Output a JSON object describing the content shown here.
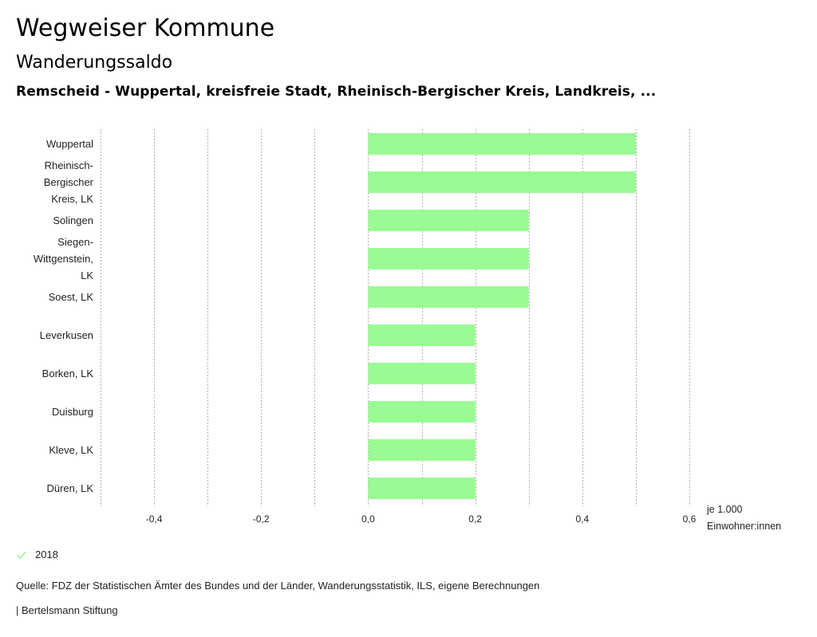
{
  "header": {
    "title": "Wegweiser Kommune",
    "subtitle": "Wanderungssaldo",
    "region": "Remscheid - Wuppertal, kreisfreie Stadt, Rheinisch-Bergischer Kreis, Landkreis, ..."
  },
  "colors": {
    "bar": "#9afa94",
    "grid": "#b0b0b0",
    "legend_check": "#9afa94"
  },
  "chart_data": {
    "type": "bar",
    "orientation": "horizontal",
    "title": "Wanderungssaldo",
    "categories": [
      [
        "Wuppertal"
      ],
      [
        "Rheinisch-",
        "Bergischer",
        "Kreis, LK"
      ],
      [
        "Solingen"
      ],
      [
        "Siegen-",
        "Wittgenstein,",
        "LK"
      ],
      [
        "Soest, LK"
      ],
      [
        "Leverkusen"
      ],
      [
        "Borken, LK"
      ],
      [
        "Duisburg"
      ],
      [
        "Kleve, LK"
      ],
      [
        "Düren, LK"
      ]
    ],
    "series": [
      {
        "name": "2018",
        "values": [
          0.5,
          0.5,
          0.3,
          0.3,
          0.3,
          0.2,
          0.2,
          0.2,
          0.2,
          0.2
        ]
      }
    ],
    "xlim": [
      -0.5,
      0.6
    ],
    "x_ticks": [
      -0.4,
      -0.2,
      0.0,
      0.2,
      0.4,
      0.6
    ],
    "x_tick_labels": [
      "-0,4",
      "-0,2",
      "0,0",
      "0,2",
      "0,4",
      "0,6"
    ],
    "gridlines": [
      -0.5,
      -0.4,
      -0.3,
      -0.2,
      -0.1,
      0.0,
      0.1,
      0.2,
      0.3,
      0.4,
      0.5,
      0.6
    ],
    "grid": true,
    "xlabel": [
      "je 1.000",
      "Einwohner:innen"
    ],
    "ylabel": "",
    "legend_position": "bottom-left"
  },
  "legend": {
    "items": [
      {
        "label": "2018",
        "icon": "check-icon"
      }
    ]
  },
  "footer": {
    "source": "Quelle: FDZ der Statistischen Ämter des Bundes und der Länder, Wanderungsstatistik, ILS, eigene Berechnungen",
    "credit": "| Bertelsmann Stiftung"
  }
}
